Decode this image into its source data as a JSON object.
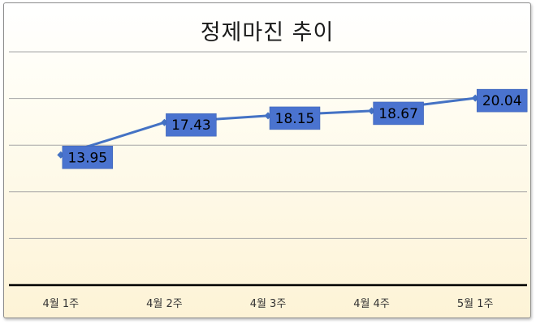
{
  "chart_data": {
    "type": "line",
    "title": "정제마진 추이",
    "xlabel": "",
    "ylabel": "",
    "categories": [
      "4월 1주",
      "4월 2주",
      "4월 3주",
      "4월 4주",
      "5월 1주"
    ],
    "series": [
      {
        "values": [
          13.95,
          17.43,
          18.15,
          18.67,
          20.04
        ]
      }
    ],
    "ylim": [
      0,
      25
    ],
    "gridlines": [
      5,
      10,
      15,
      20,
      25
    ],
    "grid": true,
    "legend": "none",
    "data_labels": true,
    "colors": {
      "line": "#4472c4",
      "label_box": "#4a73cf",
      "label_text": "#000000",
      "gridline": "#a6a6a6",
      "axis": "#000000"
    }
  }
}
